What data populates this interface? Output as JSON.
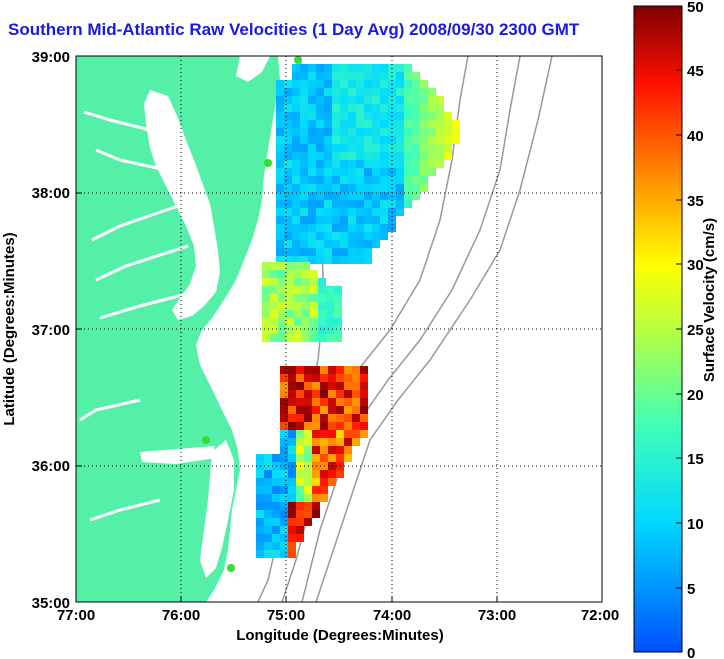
{
  "title": "Southern Mid-Atlantic Raw Velocities (1 Day Avg) 2008/09/30 2300 GMT",
  "xlabel": "Longitude (Degrees:Minutes)",
  "ylabel": "Latitude (Degrees:Minutes)",
  "colorbar_label": "Surface Velocity (cm/s)",
  "x_ticks": [
    "77:00",
    "76:00",
    "75:00",
    "74:00",
    "73:00",
    "72:00"
  ],
  "y_ticks": [
    "39:00",
    "38:00",
    "37:00",
    "36:00",
    "35:00"
  ],
  "colorbar_ticks": [
    "50",
    "45",
    "40",
    "35",
    "30",
    "25",
    "20",
    "15",
    "10",
    "5",
    "0"
  ],
  "colors": {
    "land": "#55f0a8",
    "water": "#ffffff",
    "title": "#1a1ae6",
    "station": "#33dd33"
  },
  "chart_data": {
    "type": "heatmap",
    "title": "Southern Mid-Atlantic Raw Velocities (1 Day Avg) 2008/09/30 2300 GMT",
    "xlabel": "Longitude (Degrees:Minutes)",
    "ylabel": "Latitude (Degrees:Minutes)",
    "xlim": [
      -77,
      -72
    ],
    "ylim": [
      35,
      39
    ],
    "colorbar_range": [
      0,
      50
    ],
    "grid": true
  }
}
